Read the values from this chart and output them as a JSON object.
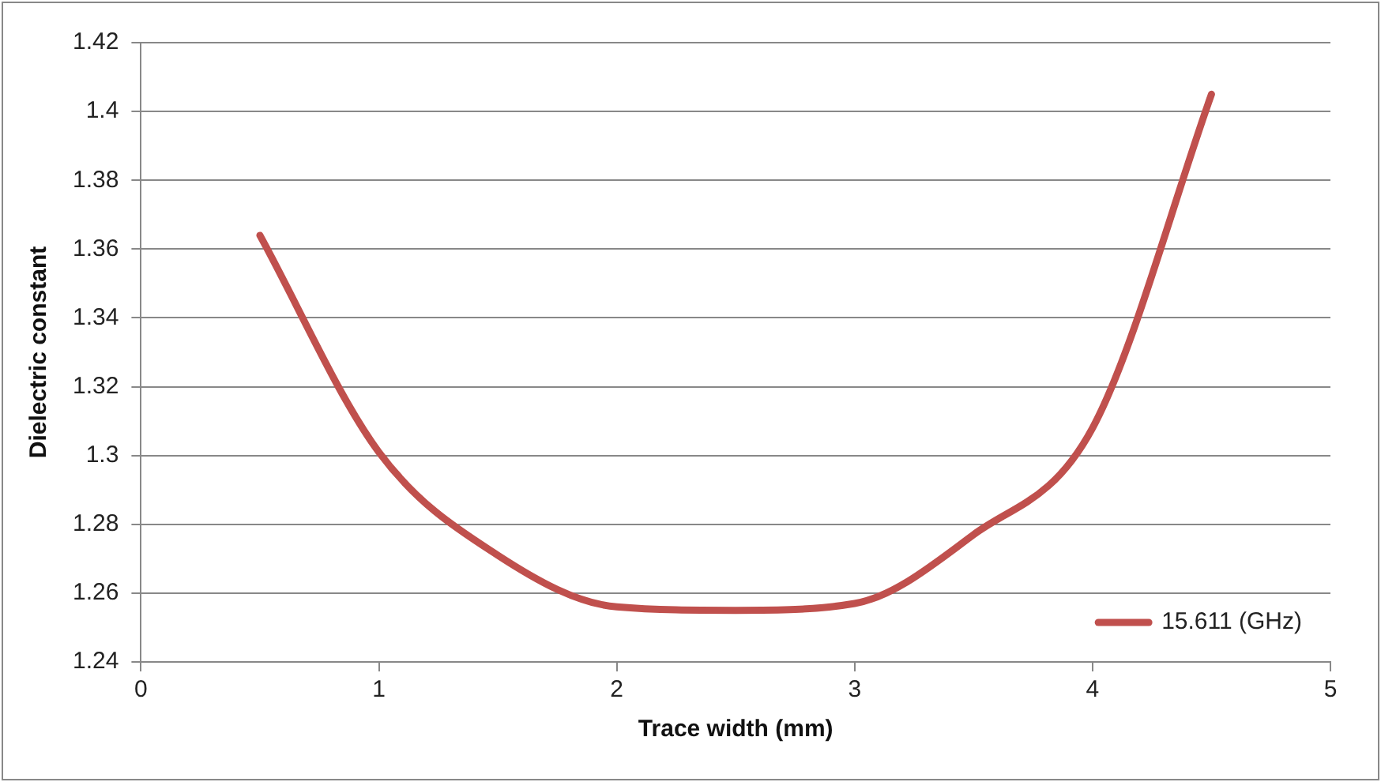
{
  "chart_data": {
    "type": "line",
    "xlabel": "Trace width (mm)",
    "ylabel": "Dielectric constant",
    "x": [
      0.5,
      1,
      1.5,
      2,
      2.5,
      3,
      3.5,
      4,
      4.5
    ],
    "series": [
      {
        "name": "15.611 (GHz)",
        "color": "#c0504d",
        "values": [
          1.364,
          1.301,
          1.271,
          1.256,
          1.255,
          1.257,
          1.277,
          1.308,
          1.405
        ]
      }
    ],
    "xlim": [
      0,
      5
    ],
    "xticks": [
      0,
      1,
      2,
      3,
      4,
      5
    ],
    "ylim": [
      1.24,
      1.42
    ],
    "yticks": [
      1.24,
      1.26,
      1.28,
      1.3,
      1.32,
      1.34,
      1.36,
      1.38,
      1.4,
      1.42
    ],
    "grid": "y",
    "legend": "bottom right",
    "marker": "none",
    "line_style": "solid"
  }
}
